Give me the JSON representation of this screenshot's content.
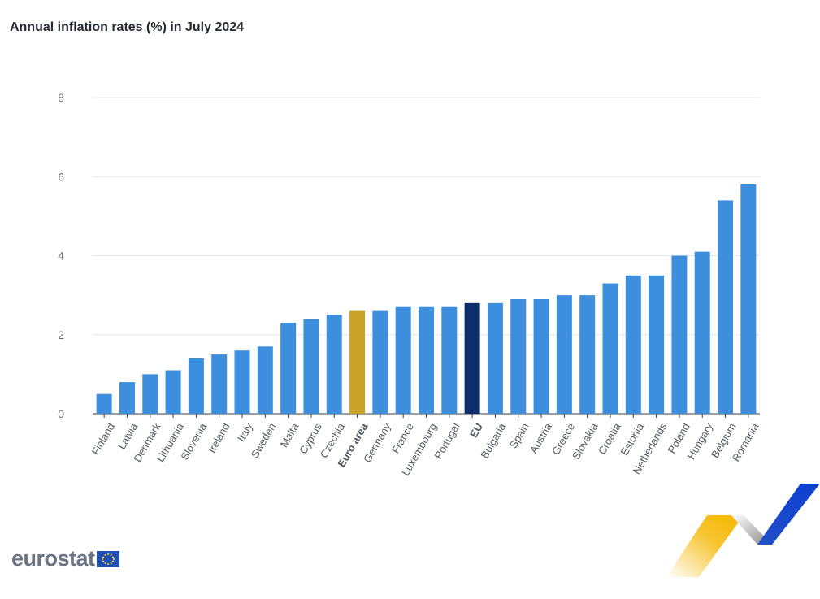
{
  "chart_data": {
    "type": "bar",
    "title": "Annual inflation rates (%) in July 2024",
    "categories": [
      "Finland",
      "Latvia",
      "Denmark",
      "Lithuania",
      "Slovenia",
      "Ireland",
      "Italy",
      "Sweden",
      "Malta",
      "Cyprus",
      "Czechia",
      "Euro area",
      "Germany",
      "France",
      "Luxembourg",
      "Portugal",
      "EU",
      "Bulgaria",
      "Spain",
      "Austria",
      "Greece",
      "Slovakia",
      "Croatia",
      "Estonia",
      "Netherlands",
      "Poland",
      "Hungary",
      "Belgium",
      "Romania"
    ],
    "values": [
      0.5,
      0.8,
      1.0,
      1.1,
      1.4,
      1.5,
      1.6,
      1.7,
      2.3,
      2.4,
      2.5,
      2.6,
      2.6,
      2.7,
      2.7,
      2.7,
      2.8,
      2.8,
      2.9,
      2.9,
      3.0,
      3.0,
      3.3,
      3.5,
      3.5,
      4.0,
      4.1,
      5.4,
      5.8
    ],
    "highlight": {
      "Euro area": "#c9a227",
      "EU": "#0e2e6b"
    },
    "bold_categories": [
      "Euro area",
      "EU"
    ],
    "bar_color": "#3e8ede",
    "ylim": [
      0,
      8
    ],
    "yticks": [
      0,
      2,
      4,
      6,
      8
    ],
    "xlabel": "",
    "ylabel": "",
    "grid": true,
    "legend": "none"
  },
  "logo": {
    "text": "eurostat",
    "flag": "eu-flag-icon"
  },
  "decoration": {
    "name": "eurostat-chevron-graphic",
    "colors": [
      "#f7c42d",
      "#9a9a9a",
      "#0e47cb"
    ]
  }
}
